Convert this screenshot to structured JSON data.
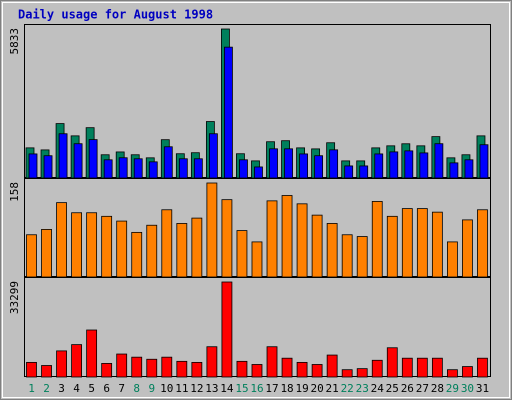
{
  "chart_data": [
    {
      "type": "bar",
      "title": "Daily usage for August 1998",
      "categories": [
        "1",
        "2",
        "3",
        "4",
        "5",
        "6",
        "7",
        "8",
        "9",
        "10",
        "11",
        "12",
        "13",
        "14",
        "15",
        "16",
        "17",
        "18",
        "19",
        "20",
        "21",
        "22",
        "23",
        "24",
        "25",
        "26",
        "27",
        "28",
        "29",
        "30",
        "31"
      ],
      "weekend_indices": [
        0,
        1,
        7,
        8,
        14,
        15,
        21,
        22,
        28,
        29
      ],
      "weekend_color": "#00805c",
      "ylim": [
        0,
        5833
      ],
      "yticks": [
        5833
      ],
      "series": [
        {
          "color": "#00805c",
          "values": [
            1180,
            1100,
            2130,
            1650,
            1970,
            910,
            1020,
            910,
            790,
            1500,
            950,
            990,
            2210,
            5833,
            950,
            670,
            1420,
            1460,
            1180,
            1140,
            1380,
            670,
            670,
            1180,
            1260,
            1340,
            1260,
            1620,
            790,
            910,
            1650
          ]
        },
        {
          "color": "#0000ff",
          "values": [
            1060,
            990,
            1850,
            1460,
            1620,
            830,
            910,
            870,
            750,
            1340,
            870,
            870,
            1850,
            5240,
            830,
            550,
            1260,
            1260,
            1060,
            990,
            1220,
            590,
            590,
            1060,
            1140,
            1180,
            1100,
            1460,
            710,
            830,
            1420
          ]
        }
      ]
    },
    {
      "type": "bar",
      "ylim": [
        0,
        158
      ],
      "yticks": [
        158
      ],
      "series": [
        {
          "color": "#ff8000",
          "values": [
            71,
            80,
            125,
            108,
            108,
            102,
            94,
            75,
            87,
            113,
            90,
            99,
            158,
            130,
            78,
            59,
            128,
            137,
            123,
            104,
            90,
            71,
            68,
            127,
            102,
            115,
            115,
            109,
            59,
            96,
            113
          ]
        }
      ]
    },
    {
      "type": "bar",
      "ylim": [
        0,
        33299
      ],
      "yticks": [
        33299
      ],
      "series": [
        {
          "color": "#ff0000",
          "values": [
            5120,
            4030,
            9150,
            11350,
            16470,
            4760,
            8050,
            6950,
            6220,
            6950,
            5490,
            5120,
            10610,
            33299,
            5490,
            4390,
            10610,
            6590,
            5120,
            4390,
            7690,
            2560,
            2930,
            5860,
            10250,
            6590,
            6590,
            6590,
            2560,
            3660,
            6590
          ]
        }
      ]
    }
  ]
}
